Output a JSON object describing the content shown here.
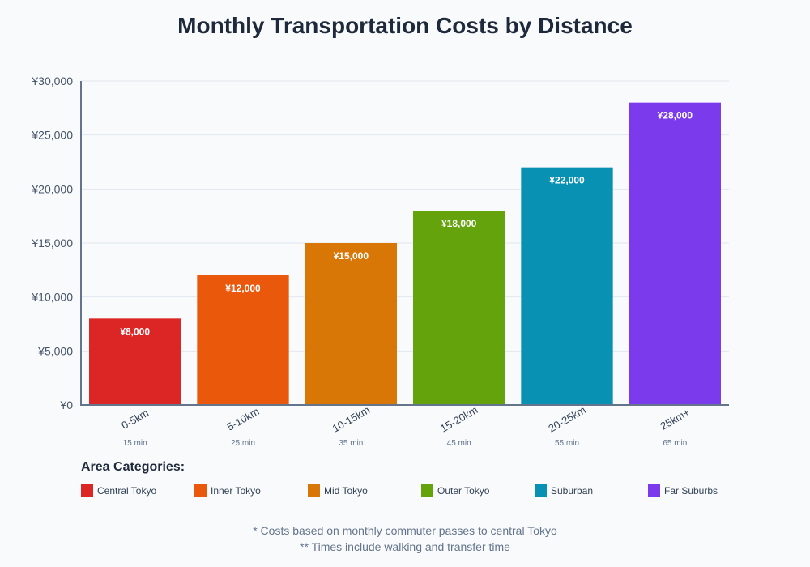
{
  "chart_data": {
    "type": "bar",
    "title": "Monthly Transportation Costs by Distance",
    "categories": [
      "0-5km",
      "5-10km",
      "10-15km",
      "15-20km",
      "20-25km",
      "25km+"
    ],
    "sublabels": [
      "15 min",
      "25 min",
      "35 min",
      "45 min",
      "55 min",
      "65 min"
    ],
    "values": [
      8000,
      12000,
      15000,
      18000,
      22000,
      28000
    ],
    "value_labels": [
      "¥8,000",
      "¥12,000",
      "¥15,000",
      "¥18,000",
      "¥22,000",
      "¥28,000"
    ],
    "colors": [
      "#dc2626",
      "#ea580c",
      "#d97706",
      "#65a30d",
      "#0891b2",
      "#7c3aed"
    ],
    "ylim": [
      0,
      30000
    ],
    "yticks": [
      0,
      5000,
      10000,
      15000,
      20000,
      25000,
      30000
    ],
    "ytick_labels": [
      "¥0",
      "¥5,000",
      "¥10,000",
      "¥15,000",
      "¥20,000",
      "¥25,000",
      "¥30,000"
    ],
    "grid": true,
    "legend": {
      "title": "Area Categories:",
      "placement": "bottom",
      "items": [
        "Central Tokyo",
        "Inner Tokyo",
        "Mid Tokyo",
        "Outer Tokyo",
        "Suburban",
        "Far Suburbs"
      ]
    },
    "notes": [
      "* Costs based on monthly commuter passes to central Tokyo",
      "** Times include walking and transfer time"
    ]
  }
}
